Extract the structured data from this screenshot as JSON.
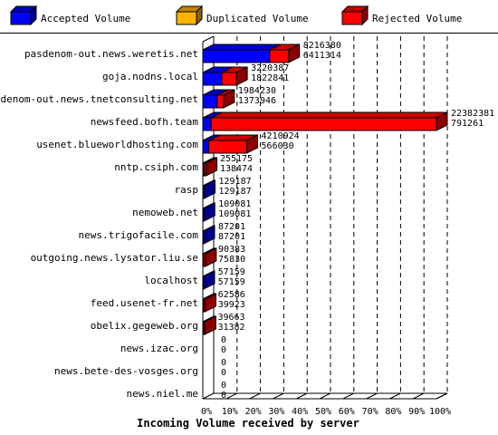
{
  "chart_data": {
    "type": "bar",
    "title": "",
    "xlabel": "Incoming Volume received by server",
    "ylabel": "",
    "xlim": [
      0,
      100
    ],
    "x_ticks": [
      "0%",
      "10%",
      "20%",
      "30%",
      "40%",
      "50%",
      "60%",
      "70%",
      "80%",
      "90%",
      "100%"
    ],
    "legend_position": "top",
    "series": [
      {
        "name": "Accepted Volume",
        "color": "#0000ff"
      },
      {
        "name": "Duplicated Volume",
        "color": "#ffb200"
      },
      {
        "name": "Rejected Volume",
        "color": "#ff0000"
      }
    ],
    "categories": [
      {
        "name": "pasdenom-out.news.weretis.net",
        "total": "8216380",
        "accepted": "6411314",
        "total_num": 8216380,
        "accepted_num": 6411314
      },
      {
        "name": "goja.nodns.local",
        "total": "3220387",
        "accepted": "1822841",
        "total_num": 3220387,
        "accepted_num": 1822841
      },
      {
        "name": "pasdenom-out.news.tnetconsulting.net",
        "total": "1984230",
        "accepted": "1373946",
        "total_num": 1984230,
        "accepted_num": 1373946
      },
      {
        "name": "newsfeed.bofh.team",
        "total": "22382381",
        "accepted": "791261",
        "total_num": 22382381,
        "accepted_num": 791261
      },
      {
        "name": "usenet.blueworldhosting.com",
        "total": "4210924",
        "accepted": "566030",
        "total_num": 4210924,
        "accepted_num": 566030
      },
      {
        "name": "nntp.csiph.com",
        "total": "255175",
        "accepted": "138474",
        "total_num": 255175,
        "accepted_num": 138474
      },
      {
        "name": "rasp",
        "total": "129187",
        "accepted": "129187",
        "total_num": 129187,
        "accepted_num": 129187
      },
      {
        "name": "nemoweb.net",
        "total": "109081",
        "accepted": "109081",
        "total_num": 109081,
        "accepted_num": 109081
      },
      {
        "name": "news.trigofacile.com",
        "total": "87201",
        "accepted": "87201",
        "total_num": 87201,
        "accepted_num": 87201
      },
      {
        "name": "outgoing.news.lysator.liu.se",
        "total": "90383",
        "accepted": "75830",
        "total_num": 90383,
        "accepted_num": 75830
      },
      {
        "name": "localhost",
        "total": "57159",
        "accepted": "57159",
        "total_num": 57159,
        "accepted_num": 57159
      },
      {
        "name": "feed.usenet-fr.net",
        "total": "62586",
        "accepted": "39923",
        "total_num": 62586,
        "accepted_num": 39923
      },
      {
        "name": "obelix.gegeweb.org",
        "total": "39663",
        "accepted": "31382",
        "total_num": 39663,
        "accepted_num": 31382
      },
      {
        "name": "news.izac.org",
        "total": "0",
        "accepted": "0",
        "total_num": 0,
        "accepted_num": 0
      },
      {
        "name": "news.bete-des-vosges.org",
        "total": "0",
        "accepted": "0",
        "total_num": 0,
        "accepted_num": 0
      },
      {
        "name": "news.niel.me",
        "total": "0",
        "accepted": "0",
        "total_num": 0,
        "accepted_num": 0
      }
    ]
  }
}
